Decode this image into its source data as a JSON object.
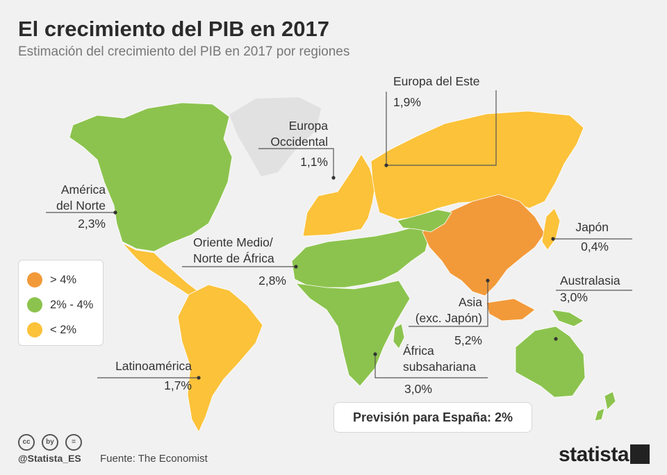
{
  "header": {
    "title": "El crecimiento del PIB en 2017",
    "subtitle": "Estimación del crecimiento del PIB en 2017 por regiones"
  },
  "colors": {
    "high": "#f29a3a",
    "mid": "#8cc34e",
    "low": "#fbc23a",
    "ice": "#e1e1e1",
    "background": "#f1f1f1"
  },
  "regions": {
    "na": {
      "name": "América del Norte",
      "name_l1": "América",
      "name_l2": "del Norte",
      "value": "2,3%",
      "growth": 2.3
    },
    "la": {
      "name": "Latinoamérica",
      "value": "1,7%",
      "growth": 1.7
    },
    "we": {
      "name": "Europa Occidental",
      "name_l1": "Europa",
      "name_l2": "Occidental",
      "value": "1,1%",
      "growth": 1.1
    },
    "ee": {
      "name": "Europa del Este",
      "value": "1,9%",
      "growth": 1.9
    },
    "me": {
      "name": "Oriente Medio/ Norte de África",
      "name_l1": "Oriente Medio/",
      "name_l2": "Norte de África",
      "value": "2,8%",
      "growth": 2.8
    },
    "ssa": {
      "name": "África subsahariana",
      "name_l1": "África",
      "name_l2": "subsahariana",
      "value": "3,0%",
      "growth": 3.0
    },
    "asia": {
      "name": "Asia (exc. Japón)",
      "name_l1": "Asia",
      "name_l2": "(exc. Japón)",
      "value": "5,2%",
      "growth": 5.2
    },
    "jp": {
      "name": "Japón",
      "value": "0,4%",
      "growth": 0.4
    },
    "aus": {
      "name": "Australasia",
      "value": "3,0%",
      "growth": 3.0
    }
  },
  "legend": [
    {
      "label": "> 4%",
      "color": "#f29a3a"
    },
    {
      "label": "2% - 4%",
      "color": "#8cc34e"
    },
    {
      "label": "< 2%",
      "color": "#fbc23a"
    }
  ],
  "callout": {
    "text": "Previsión para España: 2%"
  },
  "footer": {
    "source": "Fuente: The Economist",
    "handle": "@Statista_ES",
    "brand": "statista",
    "cc_icons": [
      "cc",
      "by",
      "="
    ]
  }
}
